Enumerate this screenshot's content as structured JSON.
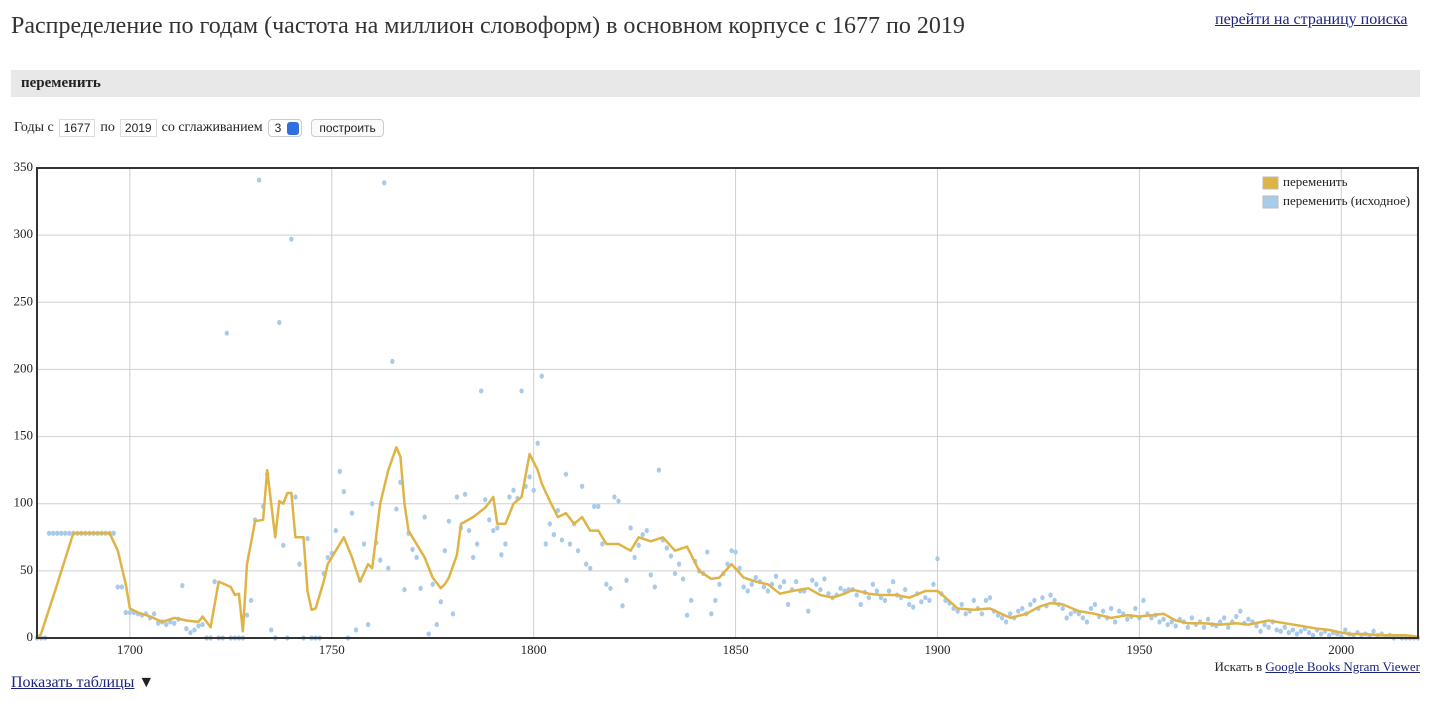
{
  "header": {
    "title": "Распределение по годам (частота на миллион словоформ) в основном корпусе с 1677 по 2019",
    "search_link": "перейти на страницу поиска"
  },
  "query": "переменить",
  "form": {
    "from_label": "Годы с",
    "year_from": "1677",
    "to_label": "по",
    "year_to": "2019",
    "smoothing_label": "со сглаживанием",
    "smoothing": "3",
    "button": "построить"
  },
  "chart_data": {
    "type": "line",
    "xlim": [
      1677,
      2019
    ],
    "xticks": [
      1700,
      1750,
      1800,
      1850,
      1900,
      1950,
      2000
    ],
    "ylim": [
      0,
      350
    ],
    "yticks": [
      0,
      50,
      100,
      150,
      200,
      250,
      300,
      350
    ],
    "grid": true,
    "legend": "top-right",
    "series": [
      {
        "name": "переменить",
        "type": "line",
        "color": "#dfb446",
        "x": [
          1677,
          1678,
          1682,
          1686,
          1695,
          1697,
          1699,
          1700,
          1702,
          1705,
          1708,
          1711,
          1714,
          1717,
          1718,
          1720,
          1722,
          1725,
          1726,
          1727,
          1728,
          1729,
          1731,
          1733,
          1734,
          1736,
          1737,
          1738,
          1739,
          1740,
          1741,
          1743,
          1744,
          1745,
          1746,
          1748,
          1749,
          1751,
          1753,
          1755,
          1757,
          1759,
          1760,
          1762,
          1764,
          1766,
          1767,
          1768,
          1769,
          1772,
          1773,
          1775,
          1777,
          1778,
          1779,
          1781,
          1782,
          1785,
          1788,
          1790,
          1791,
          1793,
          1795,
          1797,
          1799,
          1801,
          1802,
          1804,
          1806,
          1808,
          1810,
          1812,
          1814,
          1816,
          1818,
          1821,
          1824,
          1826,
          1829,
          1832,
          1835,
          1838,
          1841,
          1844,
          1846,
          1849,
          1852,
          1855,
          1858,
          1861,
          1864,
          1868,
          1871,
          1874,
          1877,
          1879,
          1883,
          1886,
          1890,
          1893,
          1897,
          1900,
          1902,
          1905,
          1909,
          1913,
          1918,
          1922,
          1925,
          1928,
          1931,
          1935,
          1939,
          1943,
          1947,
          1950,
          1953,
          1956,
          1959,
          1962,
          1966,
          1970,
          1974,
          1977,
          1982,
          1986,
          1990,
          1994,
          1997,
          2000,
          2002,
          2006,
          2009,
          2013,
          2016,
          2019
        ],
        "values": [
          0,
          3,
          40,
          78,
          78,
          65,
          40,
          22,
          19,
          16,
          12,
          15,
          13,
          12,
          16,
          8,
          42,
          38,
          32,
          33,
          5,
          55,
          87,
          88,
          125,
          75,
          102,
          100,
          108,
          108,
          75,
          75,
          35,
          21,
          22,
          42,
          55,
          65,
          75,
          60,
          42,
          55,
          52,
          100,
          125,
          142,
          135,
          100,
          80,
          65,
          60,
          45,
          37,
          40,
          45,
          62,
          85,
          90,
          97,
          105,
          85,
          85,
          100,
          105,
          137,
          125,
          115,
          102,
          90,
          93,
          85,
          90,
          80,
          80,
          70,
          70,
          65,
          75,
          72,
          75,
          65,
          68,
          50,
          44,
          45,
          55,
          45,
          42,
          40,
          33,
          35,
          37,
          32,
          30,
          33,
          36,
          33,
          32,
          32,
          30,
          35,
          35,
          30,
          22,
          21,
          22,
          15,
          18,
          23,
          26,
          25,
          20,
          18,
          15,
          17,
          16,
          17,
          18,
          13,
          11,
          11,
          10,
          11,
          10,
          13,
          11,
          9,
          7,
          6,
          4,
          3,
          3,
          2,
          2,
          2,
          1
        ]
      },
      {
        "name": "переменить (исходное)",
        "type": "scatter",
        "color": "#a9cbea",
        "x": [
          1677,
          1678,
          1679,
          1680,
          1681,
          1682,
          1683,
          1684,
          1685,
          1686,
          1687,
          1688,
          1689,
          1690,
          1691,
          1692,
          1693,
          1694,
          1695,
          1696,
          1697,
          1698,
          1699,
          1700,
          1701,
          1702,
          1703,
          1704,
          1705,
          1706,
          1707,
          1708,
          1709,
          1710,
          1711,
          1712,
          1713,
          1714,
          1715,
          1716,
          1717,
          1718,
          1719,
          1720,
          1721,
          1722,
          1723,
          1724,
          1725,
          1726,
          1727,
          1728,
          1729,
          1730,
          1731,
          1732,
          1733,
          1734,
          1735,
          1736,
          1737,
          1738,
          1739,
          1740,
          1741,
          1742,
          1743,
          1744,
          1745,
          1746,
          1747,
          1748,
          1749,
          1750,
          1751,
          1752,
          1753,
          1754,
          1755,
          1756,
          1757,
          1758,
          1759,
          1760,
          1761,
          1762,
          1763,
          1764,
          1765,
          1766,
          1767,
          1768,
          1769,
          1770,
          1771,
          1772,
          1773,
          1774,
          1775,
          1776,
          1777,
          1778,
          1779,
          1780,
          1781,
          1782,
          1783,
          1784,
          1785,
          1786,
          1787,
          1788,
          1789,
          1790,
          1791,
          1792,
          1793,
          1794,
          1795,
          1796,
          1797,
          1798,
          1799,
          1800,
          1801,
          1802,
          1803,
          1804,
          1805,
          1806,
          1807,
          1808,
          1809,
          1810,
          1811,
          1812,
          1813,
          1814,
          1815,
          1816,
          1817,
          1818,
          1819,
          1820,
          1821,
          1822,
          1823,
          1824,
          1825,
          1826,
          1827,
          1828,
          1829,
          1830,
          1831,
          1832,
          1833,
          1834,
          1835,
          1836,
          1837,
          1838,
          1839,
          1840,
          1841,
          1842,
          1843,
          1844,
          1845,
          1846,
          1847,
          1848,
          1849,
          1850,
          1851,
          1852,
          1853,
          1854,
          1855,
          1856,
          1857,
          1858,
          1859,
          1860,
          1861,
          1862,
          1863,
          1864,
          1865,
          1866,
          1867,
          1868,
          1869,
          1870,
          1871,
          1872,
          1873,
          1874,
          1875,
          1876,
          1877,
          1878,
          1879,
          1880,
          1881,
          1882,
          1883,
          1884,
          1885,
          1886,
          1887,
          1888,
          1889,
          1890,
          1891,
          1892,
          1893,
          1894,
          1895,
          1896,
          1897,
          1898,
          1899,
          1900,
          1901,
          1902,
          1903,
          1904,
          1905,
          1906,
          1907,
          1908,
          1909,
          1910,
          1911,
          1912,
          1913,
          1914,
          1915,
          1916,
          1917,
          1918,
          1919,
          1920,
          1921,
          1922,
          1923,
          1924,
          1925,
          1926,
          1927,
          1928,
          1929,
          1930,
          1931,
          1932,
          1933,
          1934,
          1935,
          1936,
          1937,
          1938,
          1939,
          1940,
          1941,
          1942,
          1943,
          1944,
          1945,
          1946,
          1947,
          1948,
          1949,
          1950,
          1951,
          1952,
          1953,
          1954,
          1955,
          1956,
          1957,
          1958,
          1959,
          1960,
          1961,
          1962,
          1963,
          1964,
          1965,
          1966,
          1967,
          1968,
          1969,
          1970,
          1971,
          1972,
          1973,
          1974,
          1975,
          1976,
          1977,
          1978,
          1979,
          1980,
          1981,
          1982,
          1983,
          1984,
          1985,
          1986,
          1987,
          1988,
          1989,
          1990,
          1991,
          1992,
          1993,
          1994,
          1995,
          1996,
          1997,
          1998,
          1999,
          2000,
          2001,
          2002,
          2003,
          2004,
          2005,
          2006,
          2007,
          2008,
          2009,
          2010,
          2011,
          2012,
          2013,
          2014,
          2015,
          2016,
          2017,
          2018,
          2019
        ],
        "values": [
          0,
          0,
          0,
          78,
          78,
          78,
          78,
          78,
          78,
          78,
          78,
          78,
          78,
          78,
          78,
          78,
          78,
          78,
          78,
          78,
          38,
          38,
          19,
          19,
          19,
          18,
          17,
          18,
          15,
          18,
          11,
          12,
          10,
          12,
          11,
          14,
          39,
          7,
          4,
          6,
          9,
          10,
          0,
          0,
          42,
          0,
          0,
          227,
          0,
          0,
          0,
          0,
          17,
          28,
          88,
          341,
          98,
          122,
          6,
          0,
          235,
          69,
          0,
          297,
          105,
          55,
          0,
          74,
          0,
          0,
          0,
          48,
          60,
          63,
          80,
          124,
          109,
          0,
          93,
          6,
          43,
          70,
          10,
          100,
          71,
          58,
          339,
          52,
          206,
          96,
          116,
          36,
          78,
          66,
          60,
          37,
          90,
          3,
          40,
          10,
          27,
          65,
          87,
          18,
          105,
          82,
          107,
          80,
          60,
          70,
          184,
          103,
          88,
          80,
          82,
          62,
          70,
          105,
          110,
          104,
          184,
          113,
          120,
          110,
          145,
          195,
          70,
          85,
          77,
          95,
          73,
          122,
          70,
          85,
          65,
          113,
          55,
          52,
          98,
          98,
          70,
          40,
          37,
          105,
          102,
          24,
          43,
          82,
          60,
          69,
          77,
          80,
          47,
          38,
          125,
          73,
          67,
          61,
          48,
          55,
          44,
          17,
          28,
          57,
          50,
          48,
          64,
          18,
          28,
          40,
          48,
          55,
          65,
          64,
          52,
          38,
          35,
          40,
          45,
          42,
          38,
          35,
          40,
          46,
          38,
          42,
          25,
          36,
          42,
          35,
          35,
          20,
          43,
          40,
          36,
          44,
          33,
          30,
          32,
          37,
          35,
          36,
          36,
          32,
          25,
          34,
          30,
          40,
          35,
          30,
          28,
          35,
          42,
          32,
          30,
          36,
          25,
          23,
          33,
          27,
          30,
          28,
          40,
          59,
          33,
          28,
          26,
          22,
          20,
          25,
          18,
          20,
          28,
          22,
          18,
          28,
          30,
          20,
          17,
          15,
          12,
          18,
          15,
          20,
          22,
          18,
          25,
          28,
          22,
          30,
          24,
          32,
          28,
          25,
          22,
          15,
          18,
          20,
          18,
          15,
          12,
          22,
          25,
          16,
          20,
          15,
          22,
          12,
          20,
          18,
          14,
          16,
          22,
          15,
          28,
          18,
          15,
          17,
          12,
          14,
          10,
          12,
          9,
          14,
          12,
          8,
          15,
          10,
          12,
          8,
          14,
          10,
          9,
          12,
          15,
          8,
          12,
          16,
          20,
          11,
          14,
          12,
          9,
          5,
          10,
          8,
          12,
          6,
          5,
          8,
          4,
          6,
          3,
          5,
          7,
          4,
          2,
          6,
          3,
          5,
          2,
          4,
          3,
          1,
          6,
          3,
          2,
          4,
          2,
          3,
          1,
          5,
          2,
          3,
          1,
          2,
          0,
          1,
          0,
          0,
          0,
          0,
          0
        ]
      }
    ]
  },
  "footer": {
    "search_prefix": "Искать в",
    "search_link": "Google Books Ngram Viewer",
    "show_tables": "Показать таблицы",
    "arrow": "▼"
  }
}
